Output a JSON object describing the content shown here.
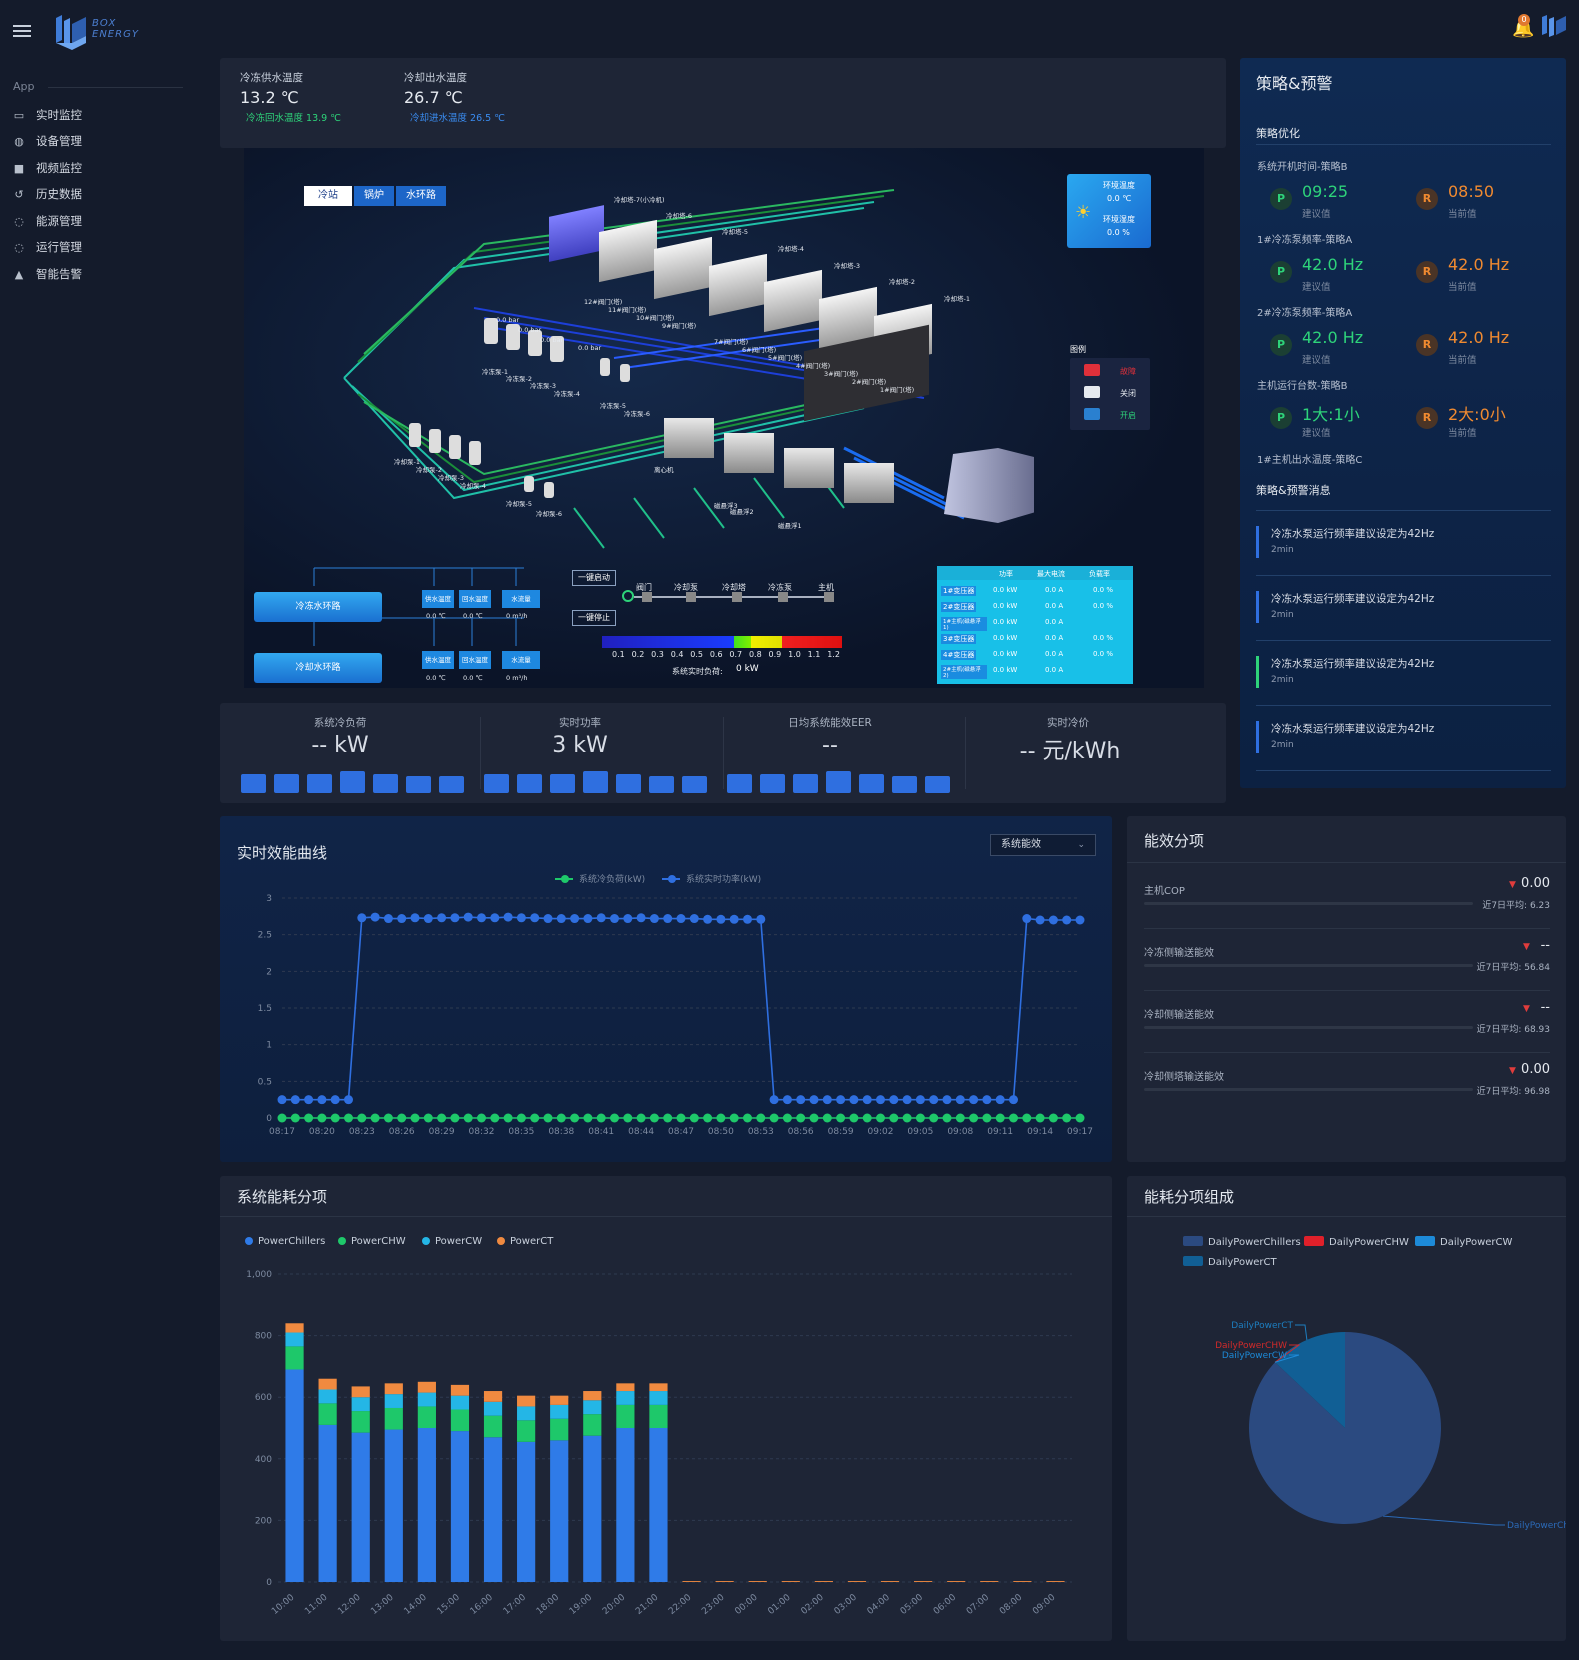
{
  "brand": {
    "line1": "BOX",
    "line2": "ENERGY"
  },
  "header": {
    "notification_count": "0"
  },
  "sidebar": {
    "group": "App",
    "items": [
      {
        "label": "实时监控",
        "icon": "monitor-icon"
      },
      {
        "label": "设备管理",
        "icon": "devices-icon"
      },
      {
        "label": "视频监控",
        "icon": "video-icon"
      },
      {
        "label": "历史数据",
        "icon": "history-icon"
      },
      {
        "label": "能源管理",
        "icon": "energy-icon"
      },
      {
        "label": "运行管理",
        "icon": "operation-icon"
      },
      {
        "label": "智能告警",
        "icon": "alarm-icon"
      }
    ]
  },
  "temps": {
    "chilled_supply_label": "冷冻供水温度",
    "chilled_supply_value": "13.2 ℃",
    "chilled_return": "冷冻回水温度  13.9 ℃",
    "cooling_out_label": "冷却出水温度",
    "cooling_out_value": "26.7 ℃",
    "cooling_in": "冷却进水温度  26.5 ℃"
  },
  "scada": {
    "tabs": [
      "冷站",
      "锅炉",
      "水环路"
    ],
    "env": {
      "temp_label": "环境温度",
      "temp_value": "0.0 ℃",
      "hum_label": "环境湿度",
      "hum_value": "0.0 %"
    },
    "legend_title": "图例",
    "legend": [
      {
        "label": "故障",
        "color": "#e0303a"
      },
      {
        "label": "关闭",
        "color": "#e6eaf0"
      },
      {
        "label": "开启",
        "color": "#2ed37a"
      }
    ],
    "tower_labels": [
      "冷却塔-7(小冷机)",
      "冷却塔-6",
      "冷却塔-5",
      "冷却塔-4",
      "冷却塔-3",
      "冷却塔-2",
      "冷却塔-1"
    ],
    "pump_labels": [
      "冷冻泵-1",
      "冷冻泵-2",
      "冷冻泵-3",
      "冷冻泵-4",
      "冷冻泵-5",
      "冷冻泵-6"
    ],
    "cw_pump_labels": [
      "冷却泵-1",
      "冷却泵-2",
      "冷却泵-3",
      "冷却泵-4",
      "冷却泵-5",
      "冷却泵-6"
    ],
    "chiller_labels": [
      "离心机",
      "磁悬浮2",
      "磁悬浮1",
      "磁悬浮3"
    ],
    "valve_labels": [
      "12#阀门(塔)",
      "11#阀门(塔)",
      "10#阀门(塔)",
      "9#阀门(塔)",
      "7#阀门(塔)",
      "6#阀门(塔)",
      "5#阀门(塔)",
      "4#阀门(塔)",
      "3#阀门(塔)",
      "2#阀门(塔)",
      "1#阀门(塔)"
    ],
    "pressures": [
      "0.0 bar",
      "0.0 bar",
      "0.0 bar",
      "0.0 bar"
    ],
    "loops": [
      {
        "name": "冷冻水环路",
        "boxes": [
          "供水温度",
          "回水温度",
          "水流量"
        ],
        "vals": [
          "0.0 ℃",
          "0.0 ℃",
          "0 m³/h"
        ]
      },
      {
        "name": "冷却水环路",
        "boxes": [
          "供水温度",
          "回水温度",
          "水流量"
        ],
        "vals": [
          "0.0 ℃",
          "0.0 ℃",
          "0 m³/h"
        ]
      }
    ],
    "start_btn": "一键启动",
    "stop_btn": "一键停止",
    "seq_labels": [
      "阀门",
      "冷却泵",
      "冷却塔",
      "冷冻泵",
      "主机"
    ],
    "load_ticks": [
      "0.1",
      "0.2",
      "0.3",
      "0.4",
      "0.5",
      "0.6",
      "0.7",
      "0.8",
      "0.9",
      "1.0",
      "1.1",
      "1.2"
    ],
    "load_text": "系统实时负荷:",
    "load_value": "0 kW",
    "table": {
      "headers": [
        "功率",
        "最大电流",
        "负载率"
      ],
      "rows": [
        {
          "name": "1#变压器",
          "p": "0.0 kW",
          "i": "0.0 A",
          "r": "0.0 %"
        },
        {
          "name": "2#变压器",
          "p": "0.0 kW",
          "i": "0.0 A",
          "r": "0.0 %"
        },
        {
          "name": "1#主机(磁悬浮1)",
          "p": "0.0 kW",
          "i": "0.0 A",
          "r": ""
        },
        {
          "name": "3#变压器",
          "p": "0.0 kW",
          "i": "0.0 A",
          "r": "0.0 %"
        },
        {
          "name": "4#变压器",
          "p": "0.0 kW",
          "i": "0.0 A",
          "r": "0.0 %"
        },
        {
          "name": "2#主机(磁悬浮2)",
          "p": "0.0 kW",
          "i": "0.0 A",
          "r": ""
        }
      ]
    }
  },
  "kpis": [
    {
      "title": "系统冷负荷",
      "value": "-- kW"
    },
    {
      "title": "实时功率",
      "value": "3 kW"
    },
    {
      "title": "日均系统能效EER",
      "value": "--"
    },
    {
      "title": "实时冷价",
      "value": "-- 元/kWh"
    }
  ],
  "strategy": {
    "title": "策略&预警",
    "section1": "策略优化",
    "groups": [
      {
        "caption": "系统开机时间-策略B",
        "suggest": "09:25",
        "current": "08:50"
      },
      {
        "caption": "1#冷冻泵频率-策略A",
        "suggest": "42.0 Hz",
        "current": "42.0 Hz"
      },
      {
        "caption": "2#冷冻泵频率-策略A",
        "suggest": "42.0 Hz",
        "current": "42.0 Hz"
      },
      {
        "caption": "主机运行台数-策略B",
        "suggest": "1大:1小",
        "current": "2大:0小"
      }
    ],
    "p_letter": "P",
    "r_letter": "R",
    "suggest_label": "建议值",
    "current_label": "当前值",
    "last_caption": "1#主机出水温度-策略C",
    "section2": "策略&预警消息",
    "messages": [
      {
        "text": "冷冻水泵运行频率建议设定为42Hz",
        "time": "2min",
        "color": "#2f6fe0"
      },
      {
        "text": "冷冻水泵运行频率建议设定为42Hz",
        "time": "2min",
        "color": "#2f6fe0"
      },
      {
        "text": "冷冻水泵运行频率建议设定为42Hz",
        "time": "2min",
        "color": "#2ed37a"
      },
      {
        "text": "冷冻水泵运行频率建议设定为42Hz",
        "time": "2min",
        "color": "#2f6fe0"
      }
    ]
  },
  "efficiency_curve": {
    "title": "实时效能曲线",
    "select_value": "系统能效"
  },
  "efficiency_items": {
    "title": "能效分项",
    "avg_prefix": "近7日平均: ",
    "items": [
      {
        "label": "主机COP",
        "value": "0.00",
        "avg": "6.23"
      },
      {
        "label": "冷冻侧输送能效",
        "value": "--",
        "avg": "56.84"
      },
      {
        "label": "冷却侧输送能效",
        "value": "--",
        "avg": "68.93"
      },
      {
        "label": "冷却侧塔输送能效",
        "value": "0.00",
        "avg": "96.98"
      }
    ]
  },
  "energy_split": {
    "title": "系统能耗分项"
  },
  "energy_comp": {
    "title": "能耗分项组成"
  },
  "chart_data": [
    {
      "type": "line",
      "legend_position": "top",
      "x": [
        "08:17",
        "08:18",
        "08:19",
        "08:20",
        "08:21",
        "08:22",
        "08:23",
        "08:24",
        "08:25",
        "08:26",
        "08:27",
        "08:28",
        "08:29",
        "08:30",
        "08:31",
        "08:32",
        "08:33",
        "08:34",
        "08:35",
        "08:36",
        "08:37",
        "08:38",
        "08:39",
        "08:40",
        "08:41",
        "08:42",
        "08:43",
        "08:44",
        "08:45",
        "08:46",
        "08:47",
        "08:48",
        "08:49",
        "08:50",
        "08:51",
        "08:52",
        "08:53",
        "08:54",
        "08:55",
        "08:56",
        "08:57",
        "08:58",
        "08:59",
        "09:00",
        "09:01",
        "09:02",
        "09:03",
        "09:04",
        "09:05",
        "09:06",
        "09:07",
        "09:08",
        "09:09",
        "09:10",
        "09:11",
        "09:12",
        "09:13",
        "09:14",
        "09:15",
        "09:16",
        "09:17"
      ],
      "x_ticks": [
        "08:17",
        "08:20",
        "08:23",
        "08:26",
        "08:29",
        "08:32",
        "08:35",
        "08:38",
        "08:41",
        "08:44",
        "08:47",
        "08:50",
        "08:53",
        "08:56",
        "08:59",
        "09:02",
        "09:05",
        "09:08",
        "09:11",
        "09:14",
        "09:17"
      ],
      "ylim": [
        0,
        3
      ],
      "y_ticks": [
        "0",
        "0.5",
        "1",
        "1.5",
        "2",
        "2.5",
        "3"
      ],
      "series": [
        {
          "name": "系统冷负荷(kW)",
          "color": "#1ec86a",
          "values": [
            0,
            0,
            0,
            0,
            0,
            0,
            0,
            0,
            0,
            0,
            0,
            0,
            0,
            0,
            0,
            0,
            0,
            0,
            0,
            0,
            0,
            0,
            0,
            0,
            0,
            0,
            0,
            0,
            0,
            0,
            0,
            0,
            0,
            0,
            0,
            0,
            0,
            0,
            0,
            0,
            0,
            0,
            0,
            0,
            0,
            0,
            0,
            0,
            0,
            0,
            0,
            0,
            0,
            0,
            0,
            0,
            0,
            0,
            0,
            0,
            0
          ]
        },
        {
          "name": "系统实时功率(kW)",
          "color": "#2f6fe0",
          "values": [
            0.25,
            0.25,
            0.25,
            0.25,
            0.25,
            0.25,
            2.73,
            2.74,
            2.72,
            2.72,
            2.73,
            2.72,
            2.73,
            2.73,
            2.74,
            2.73,
            2.73,
            2.74,
            2.73,
            2.73,
            2.72,
            2.72,
            2.72,
            2.72,
            2.73,
            2.72,
            2.72,
            2.73,
            2.72,
            2.72,
            2.72,
            2.72,
            2.71,
            2.71,
            2.71,
            2.71,
            2.71,
            0.25,
            0.25,
            0.25,
            0.25,
            0.25,
            0.25,
            0.25,
            0.25,
            0.25,
            0.25,
            0.25,
            0.25,
            0.25,
            0.25,
            0.25,
            0.25,
            0.25,
            0.25,
            0.25,
            2.72,
            2.7,
            2.7,
            2.7,
            2.7
          ]
        }
      ]
    },
    {
      "type": "bar",
      "stacked": true,
      "legend_position": "top-left",
      "categories": [
        "10:00",
        "11:00",
        "12:00",
        "13:00",
        "14:00",
        "15:00",
        "16:00",
        "17:00",
        "18:00",
        "19:00",
        "20:00",
        "21:00",
        "22:00",
        "23:00",
        "00:00",
        "01:00",
        "02:00",
        "03:00",
        "04:00",
        "05:00",
        "06:00",
        "07:00",
        "08:00",
        "09:00"
      ],
      "ylim": [
        0,
        1000
      ],
      "y_ticks": [
        "0",
        "200",
        "400",
        "600",
        "800",
        "1,000"
      ],
      "series": [
        {
          "name": "PowerChillers",
          "color": "#2f7be8",
          "values": [
            690,
            510,
            485,
            495,
            500,
            490,
            470,
            455,
            460,
            475,
            500,
            500,
            0,
            0,
            0,
            0,
            0,
            0,
            0,
            0,
            0,
            0,
            0,
            0
          ]
        },
        {
          "name": "PowerCHW",
          "color": "#1ec86a",
          "values": [
            75,
            70,
            70,
            70,
            70,
            70,
            70,
            70,
            70,
            70,
            75,
            75,
            0,
            0,
            0,
            0,
            0,
            0,
            0,
            0,
            0,
            0,
            0,
            0
          ]
        },
        {
          "name": "PowerCW",
          "color": "#24b6e6",
          "values": [
            45,
            45,
            45,
            45,
            45,
            45,
            45,
            45,
            45,
            45,
            45,
            45,
            0,
            0,
            0,
            0,
            0,
            0,
            0,
            0,
            0,
            0,
            0,
            0
          ]
        },
        {
          "name": "PowerCT",
          "color": "#f08a40",
          "values": [
            30,
            35,
            35,
            35,
            35,
            35,
            35,
            35,
            30,
            30,
            25,
            25,
            3,
            3,
            3,
            3,
            3,
            3,
            3,
            3,
            3,
            3,
            3,
            3
          ]
        }
      ]
    },
    {
      "type": "pie",
      "legend_position": "top",
      "series": [
        {
          "name": "DailyPowerChillers",
          "color": "#2b4a80",
          "value": 87
        },
        {
          "name": "DailyPowerCHW",
          "color": "#e0202a",
          "value": 0
        },
        {
          "name": "DailyPowerCW",
          "color": "#1d8ad8",
          "value": 0
        },
        {
          "name": "DailyPowerCT",
          "color": "#115f95",
          "value": 13
        }
      ]
    }
  ]
}
